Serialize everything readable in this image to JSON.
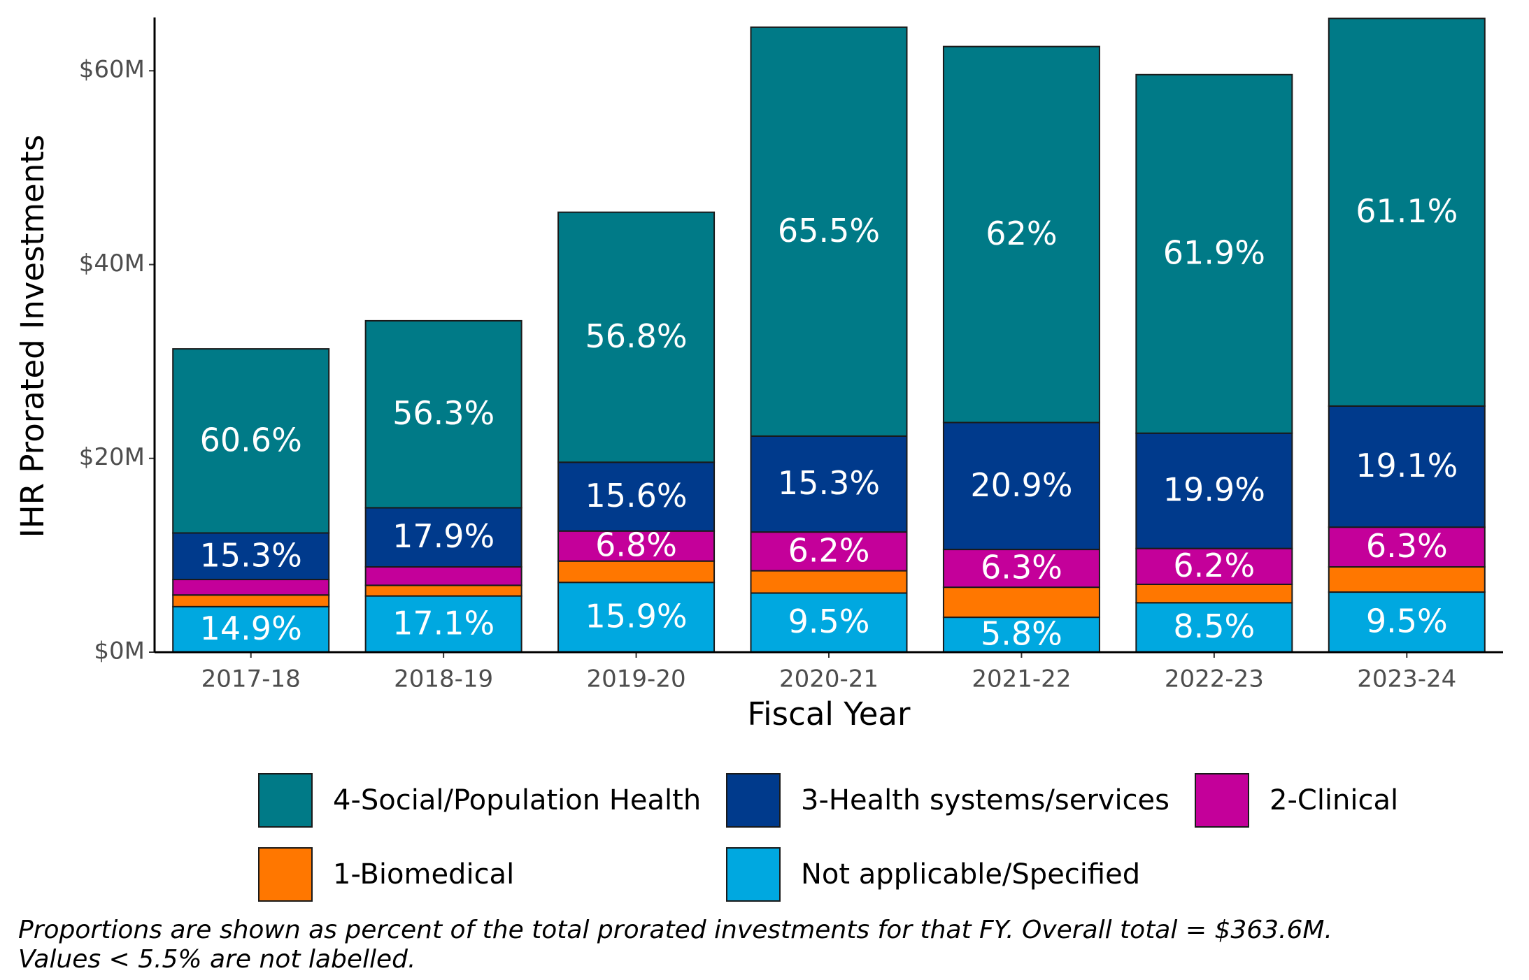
{
  "chart_data": {
    "type": "stacked-bar",
    "x_label": "Fiscal Year",
    "y_label": "IHR Prorated Investments",
    "caption": [
      "Proportions are shown as percent of the total prorated investments for that FY. Overall total = $363.6M.",
      "Values < 5.5% are not labelled."
    ],
    "categories": [
      "2017-18",
      "2018-19",
      "2019-20",
      "2020-21",
      "2021-22",
      "2022-23",
      "2023-24"
    ],
    "series": [
      {
        "name": "Not applicable/Specified",
        "color": "#00a8e0",
        "values": [
          4.7,
          5.8,
          7.2,
          6.1,
          3.6,
          5.1,
          6.2
        ],
        "value_labels": [
          "14.9%",
          "17.1%",
          "15.9%",
          "9.5%",
          "5.8%",
          "8.5%",
          "9.5%"
        ]
      },
      {
        "name": "1-Biomedical",
        "color": "#ff7700",
        "values": [
          1.2,
          1.1,
          2.2,
          2.3,
          3.1,
          1.9,
          2.6
        ],
        "value_labels": [
          null,
          null,
          null,
          null,
          null,
          null,
          null
        ]
      },
      {
        "name": "2-Clinical",
        "color": "#c4009a",
        "values": [
          1.6,
          1.9,
          3.1,
          4.0,
          3.9,
          3.7,
          4.1
        ],
        "value_labels": [
          null,
          null,
          "6.8%",
          "6.2%",
          "6.3%",
          "6.2%",
          "6.3%"
        ]
      },
      {
        "name": "3-Health systems/services",
        "color": "#003a8c",
        "values": [
          4.8,
          6.1,
          7.1,
          9.9,
          13.1,
          11.9,
          12.5
        ],
        "value_labels": [
          "15.3%",
          "17.9%",
          "15.6%",
          "15.3%",
          "20.9%",
          "19.9%",
          "19.1%"
        ]
      },
      {
        "name": "4-Social/Population Health",
        "color": "#007a87",
        "values": [
          19.0,
          19.3,
          25.8,
          42.2,
          38.8,
          37.0,
          40.0
        ],
        "value_labels": [
          "60.6%",
          "56.3%",
          "56.8%",
          "65.5%",
          "62%",
          "61.9%",
          "61.1%"
        ]
      }
    ],
    "ylim": [
      0,
      65.5
    ],
    "yticks": [
      {
        "value": 0,
        "label": "$0M"
      },
      {
        "value": 20,
        "label": "$20M"
      },
      {
        "value": 40,
        "label": "$40M"
      },
      {
        "value": 60,
        "label": "$60M"
      }
    ],
    "grid": false
  }
}
